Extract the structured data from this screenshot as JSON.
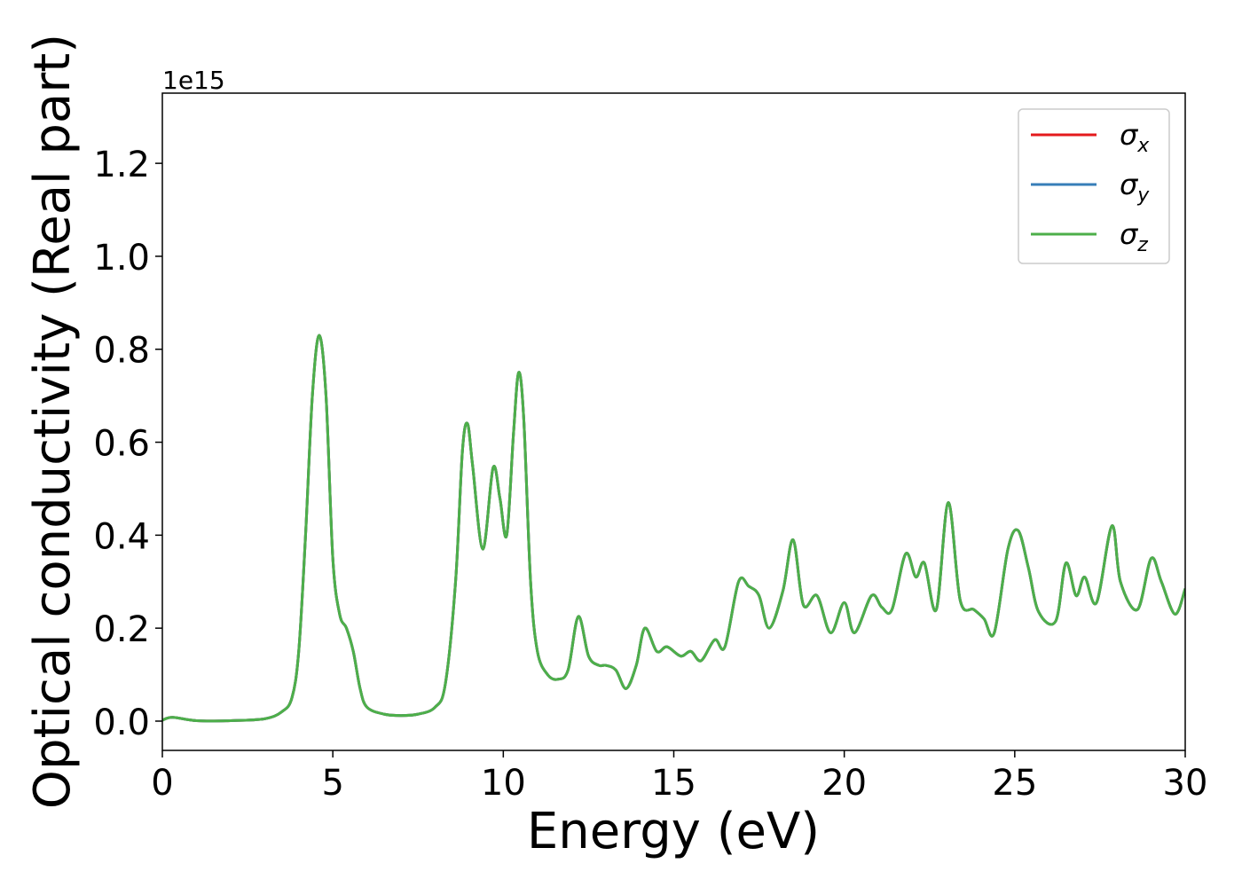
{
  "chart_data": {
    "type": "line",
    "xlabel": "Energy (eV)",
    "ylabel": "Optical conductivity (Real part)",
    "y_offset_label": "1e15",
    "x": [
      0,
      0.3,
      1,
      2,
      3,
      3.5,
      3.8,
      4.0,
      4.2,
      4.4,
      4.6,
      4.8,
      5.0,
      5.2,
      5.4,
      5.6,
      5.8,
      6.0,
      6.5,
      7,
      7.5,
      8,
      8.3,
      8.6,
      8.8,
      8.95,
      9.1,
      9.4,
      9.7,
      9.9,
      10.1,
      10.3,
      10.45,
      10.6,
      10.8,
      11.0,
      11.3,
      11.6,
      11.9,
      12.2,
      12.5,
      12.8,
      13.0,
      13.3,
      13.6,
      13.9,
      14.15,
      14.5,
      14.8,
      15.2,
      15.5,
      15.8,
      16.2,
      16.5,
      16.9,
      17.2,
      17.5,
      17.8,
      18.2,
      18.5,
      18.8,
      19.2,
      19.6,
      20.0,
      20.3,
      20.8,
      21.1,
      21.4,
      21.8,
      22.1,
      22.35,
      22.7,
      23.05,
      23.4,
      23.8,
      24.1,
      24.4,
      24.8,
      25.1,
      25.4,
      25.7,
      26.2,
      26.5,
      26.8,
      27.05,
      27.4,
      27.85,
      28.1,
      28.6,
      29.0,
      29.3,
      29.7,
      30
    ],
    "series": [
      {
        "name": "σx",
        "color": "#e41a1c",
        "values": [
          0.002,
          0.008,
          0.001,
          0.001,
          0.005,
          0.02,
          0.05,
          0.15,
          0.4,
          0.7,
          0.83,
          0.7,
          0.35,
          0.23,
          0.2,
          0.15,
          0.07,
          0.03,
          0.015,
          0.012,
          0.015,
          0.03,
          0.08,
          0.3,
          0.58,
          0.64,
          0.55,
          0.37,
          0.545,
          0.48,
          0.4,
          0.62,
          0.75,
          0.65,
          0.3,
          0.15,
          0.1,
          0.09,
          0.11,
          0.225,
          0.14,
          0.12,
          0.12,
          0.11,
          0.07,
          0.12,
          0.2,
          0.15,
          0.16,
          0.14,
          0.15,
          0.13,
          0.175,
          0.16,
          0.3,
          0.29,
          0.27,
          0.2,
          0.28,
          0.39,
          0.25,
          0.27,
          0.19,
          0.255,
          0.19,
          0.27,
          0.245,
          0.24,
          0.36,
          0.31,
          0.34,
          0.24,
          0.47,
          0.26,
          0.24,
          0.22,
          0.19,
          0.37,
          0.41,
          0.33,
          0.235,
          0.215,
          0.34,
          0.27,
          0.31,
          0.255,
          0.42,
          0.3,
          0.24,
          0.35,
          0.3,
          0.23,
          0.285
        ]
      },
      {
        "name": "σy",
        "color": "#377eb8",
        "values": [
          0.002,
          0.008,
          0.001,
          0.001,
          0.005,
          0.02,
          0.05,
          0.15,
          0.4,
          0.7,
          0.83,
          0.7,
          0.35,
          0.23,
          0.2,
          0.15,
          0.07,
          0.03,
          0.015,
          0.012,
          0.015,
          0.03,
          0.08,
          0.3,
          0.58,
          0.64,
          0.55,
          0.37,
          0.545,
          0.48,
          0.4,
          0.62,
          0.75,
          0.65,
          0.3,
          0.15,
          0.1,
          0.09,
          0.11,
          0.225,
          0.14,
          0.12,
          0.12,
          0.11,
          0.07,
          0.12,
          0.2,
          0.15,
          0.16,
          0.14,
          0.15,
          0.13,
          0.175,
          0.16,
          0.3,
          0.29,
          0.27,
          0.2,
          0.28,
          0.39,
          0.25,
          0.27,
          0.19,
          0.255,
          0.19,
          0.27,
          0.245,
          0.24,
          0.36,
          0.31,
          0.34,
          0.24,
          0.47,
          0.26,
          0.24,
          0.22,
          0.19,
          0.37,
          0.41,
          0.33,
          0.235,
          0.215,
          0.34,
          0.27,
          0.31,
          0.255,
          0.42,
          0.3,
          0.24,
          0.35,
          0.3,
          0.23,
          0.285
        ]
      },
      {
        "name": "σz",
        "color": "#4daf4a",
        "values": [
          0.002,
          0.008,
          0.001,
          0.001,
          0.005,
          0.02,
          0.05,
          0.15,
          0.4,
          0.7,
          0.83,
          0.7,
          0.35,
          0.23,
          0.2,
          0.15,
          0.07,
          0.03,
          0.015,
          0.012,
          0.015,
          0.03,
          0.08,
          0.3,
          0.58,
          0.64,
          0.55,
          0.37,
          0.545,
          0.48,
          0.4,
          0.62,
          0.75,
          0.65,
          0.3,
          0.15,
          0.1,
          0.09,
          0.11,
          0.225,
          0.14,
          0.12,
          0.12,
          0.11,
          0.07,
          0.12,
          0.2,
          0.15,
          0.16,
          0.14,
          0.15,
          0.13,
          0.175,
          0.16,
          0.3,
          0.29,
          0.27,
          0.2,
          0.28,
          0.39,
          0.25,
          0.27,
          0.19,
          0.255,
          0.19,
          0.27,
          0.245,
          0.24,
          0.36,
          0.31,
          0.34,
          0.24,
          0.47,
          0.26,
          0.24,
          0.22,
          0.19,
          0.37,
          0.41,
          0.33,
          0.235,
          0.215,
          0.34,
          0.27,
          0.31,
          0.255,
          0.42,
          0.3,
          0.24,
          0.35,
          0.3,
          0.23,
          0.285
        ]
      }
    ],
    "xlim": [
      0,
      30
    ],
    "xticks": [
      0,
      5,
      10,
      15,
      20,
      25,
      30
    ],
    "ylim": [
      -0.063,
      1.351
    ],
    "yticks": [
      {
        "value": 0,
        "label": "0.0"
      },
      0.2,
      0.4,
      0.6,
      0.8,
      {
        "value": 1,
        "label": "1.0"
      },
      1.2
    ],
    "legend": "upper right",
    "grid": false
  }
}
